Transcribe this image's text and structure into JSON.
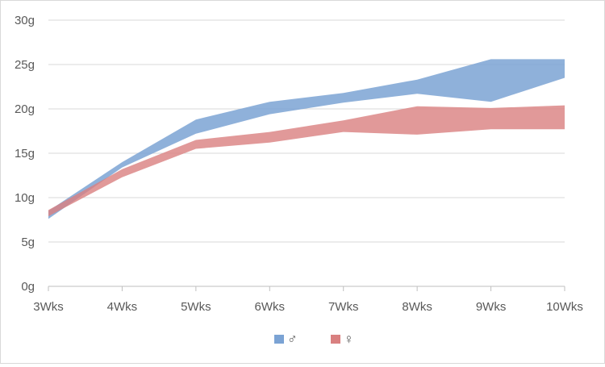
{
  "chart_data": {
    "type": "area",
    "categories": [
      "3Wks",
      "4Wks",
      "5Wks",
      "6Wks",
      "7Wks",
      "8Wks",
      "9Wks",
      "10Wks"
    ],
    "ylim": [
      0,
      30
    ],
    "yticks": [
      "0g",
      "5g",
      "10g",
      "15g",
      "20g",
      "25g",
      "30g"
    ],
    "grid": true,
    "legend_position": "bottom-center",
    "series": [
      {
        "name": "♂",
        "color": "#7ba3d4",
        "lower": [
          7.6,
          13.4,
          17.2,
          19.4,
          20.7,
          21.7,
          20.8,
          23.5
        ],
        "upper": [
          8.5,
          14.0,
          18.8,
          20.8,
          21.8,
          23.3,
          25.6,
          25.6
        ]
      },
      {
        "name": "♀",
        "color": "#d98080",
        "lower": [
          7.9,
          12.3,
          15.5,
          16.2,
          17.4,
          17.1,
          17.7,
          17.7
        ],
        "upper": [
          8.6,
          13.2,
          16.5,
          17.4,
          18.7,
          20.3,
          20.1,
          20.4
        ]
      }
    ]
  }
}
